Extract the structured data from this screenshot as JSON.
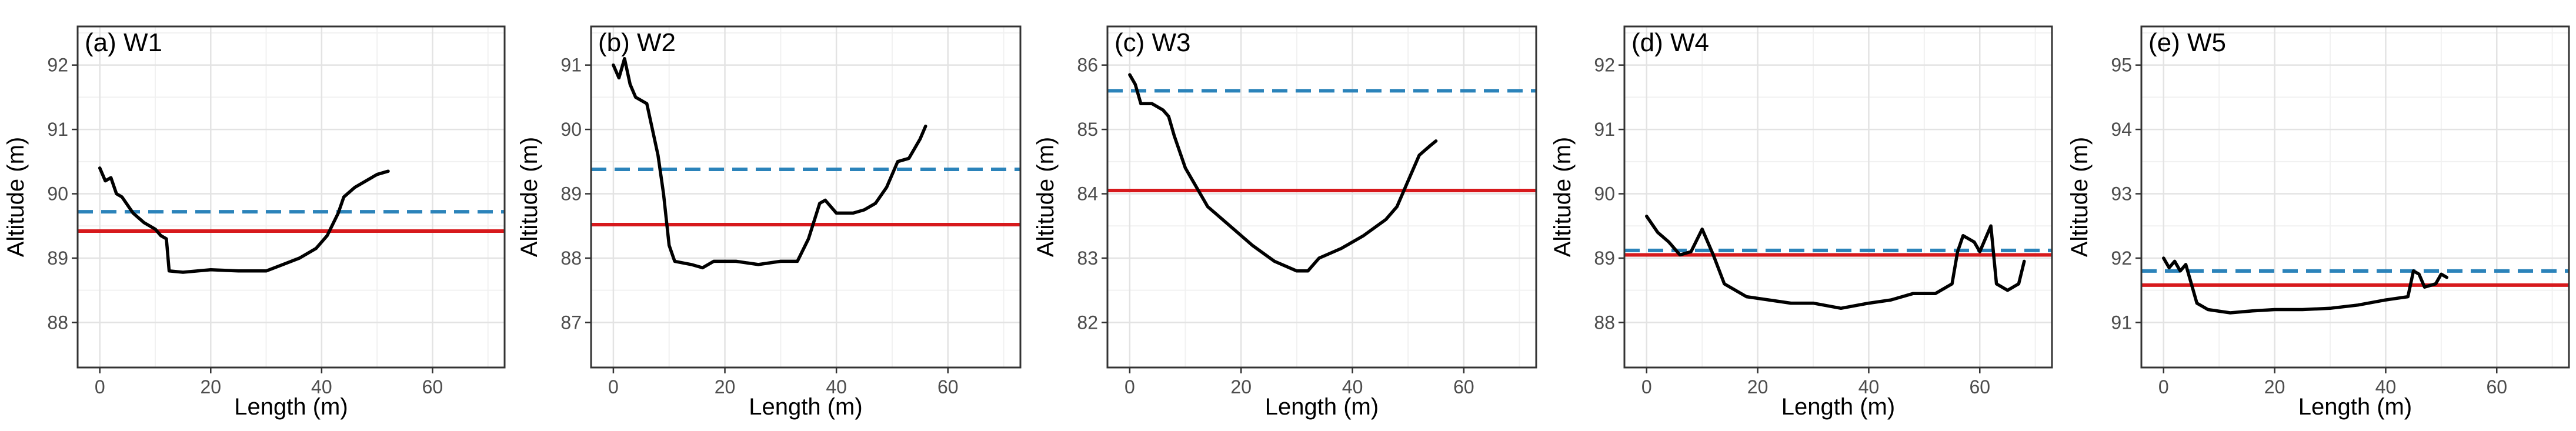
{
  "chart_data": [
    {
      "type": "line",
      "panel_label": "(a) W1",
      "xlabel": "Length (m)",
      "ylabel": "Altitude (m)",
      "xlim": [
        -4,
        73
      ],
      "ylim": [
        87.3,
        92.6
      ],
      "xticks": [
        0,
        20,
        40,
        60
      ],
      "yticks": [
        88,
        89,
        90,
        91,
        92
      ],
      "grid": true,
      "hlines": [
        {
          "y": 89.72,
          "style": "dashed",
          "color": "#2b83ba"
        },
        {
          "y": 89.42,
          "style": "solid",
          "color": "#d7191c"
        }
      ],
      "series": [
        {
          "color": "#000000",
          "points": [
            [
              0,
              90.4
            ],
            [
              1,
              90.2
            ],
            [
              2,
              90.25
            ],
            [
              3,
              90.0
            ],
            [
              4,
              89.95
            ],
            [
              6,
              89.7
            ],
            [
              8,
              89.55
            ],
            [
              10,
              89.45
            ],
            [
              11,
              89.35
            ],
            [
              12,
              89.3
            ],
            [
              12.5,
              88.8
            ],
            [
              15,
              88.78
            ],
            [
              20,
              88.82
            ],
            [
              25,
              88.8
            ],
            [
              30,
              88.8
            ],
            [
              33,
              88.9
            ],
            [
              36,
              89.0
            ],
            [
              39,
              89.15
            ],
            [
              41,
              89.35
            ],
            [
              43,
              89.7
            ],
            [
              44,
              89.95
            ],
            [
              46,
              90.1
            ],
            [
              48,
              90.2
            ],
            [
              50,
              90.3
            ],
            [
              52,
              90.35
            ]
          ]
        }
      ]
    },
    {
      "type": "line",
      "panel_label": "(b) W2",
      "xlabel": "Length (m)",
      "ylabel": "Altitude (m)",
      "xlim": [
        -4,
        73
      ],
      "ylim": [
        86.3,
        91.6
      ],
      "xticks": [
        0,
        20,
        40,
        60
      ],
      "yticks": [
        87,
        88,
        89,
        90,
        91
      ],
      "grid": true,
      "hlines": [
        {
          "y": 89.38,
          "style": "dashed",
          "color": "#2b83ba"
        },
        {
          "y": 88.52,
          "style": "solid",
          "color": "#d7191c"
        }
      ],
      "series": [
        {
          "color": "#000000",
          "points": [
            [
              0,
              91.0
            ],
            [
              1,
              90.8
            ],
            [
              2,
              91.1
            ],
            [
              3,
              90.7
            ],
            [
              4,
              90.5
            ],
            [
              6,
              90.4
            ],
            [
              7,
              90.0
            ],
            [
              8,
              89.6
            ],
            [
              9,
              89.0
            ],
            [
              10,
              88.2
            ],
            [
              11,
              87.95
            ],
            [
              14,
              87.9
            ],
            [
              16,
              87.85
            ],
            [
              18,
              87.95
            ],
            [
              22,
              87.95
            ],
            [
              26,
              87.9
            ],
            [
              30,
              87.95
            ],
            [
              33,
              87.95
            ],
            [
              35,
              88.3
            ],
            [
              37,
              88.85
            ],
            [
              38,
              88.9
            ],
            [
              40,
              88.7
            ],
            [
              43,
              88.7
            ],
            [
              45,
              88.75
            ],
            [
              47,
              88.85
            ],
            [
              49,
              89.1
            ],
            [
              51,
              89.5
            ],
            [
              53,
              89.55
            ],
            [
              55,
              89.85
            ],
            [
              56,
              90.05
            ]
          ]
        }
      ]
    },
    {
      "type": "line",
      "panel_label": "(c) W3",
      "xlabel": "Length (m)",
      "ylabel": "Altitude (m)",
      "xlim": [
        -4,
        73
      ],
      "ylim": [
        81.3,
        86.6
      ],
      "xticks": [
        0,
        20,
        40,
        60
      ],
      "yticks": [
        82,
        83,
        84,
        85,
        86
      ],
      "grid": true,
      "hlines": [
        {
          "y": 85.6,
          "style": "dashed",
          "color": "#2b83ba"
        },
        {
          "y": 84.05,
          "style": "solid",
          "color": "#d7191c"
        }
      ],
      "series": [
        {
          "color": "#000000",
          "points": [
            [
              0,
              85.85
            ],
            [
              1,
              85.7
            ],
            [
              2,
              85.4
            ],
            [
              4,
              85.4
            ],
            [
              6,
              85.3
            ],
            [
              7,
              85.2
            ],
            [
              8,
              84.9
            ],
            [
              10,
              84.4
            ],
            [
              12,
              84.1
            ],
            [
              14,
              83.8
            ],
            [
              16,
              83.65
            ],
            [
              18,
              83.5
            ],
            [
              22,
              83.2
            ],
            [
              26,
              82.95
            ],
            [
              30,
              82.8
            ],
            [
              32,
              82.8
            ],
            [
              34,
              83.0
            ],
            [
              38,
              83.15
            ],
            [
              42,
              83.35
            ],
            [
              46,
              83.6
            ],
            [
              48,
              83.8
            ],
            [
              50,
              84.2
            ],
            [
              52,
              84.6
            ],
            [
              54,
              84.75
            ],
            [
              55,
              84.82
            ]
          ]
        }
      ]
    },
    {
      "type": "line",
      "panel_label": "(d) W4",
      "xlabel": "Length (m)",
      "ylabel": "Altitude (m)",
      "xlim": [
        -4,
        73
      ],
      "ylim": [
        87.3,
        92.6
      ],
      "xticks": [
        0,
        20,
        40,
        60
      ],
      "yticks": [
        88,
        89,
        90,
        91,
        92
      ],
      "grid": true,
      "hlines": [
        {
          "y": 89.12,
          "style": "dashed",
          "color": "#2b83ba"
        },
        {
          "y": 89.05,
          "style": "solid",
          "color": "#d7191c"
        }
      ],
      "series": [
        {
          "color": "#000000",
          "points": [
            [
              0,
              89.65
            ],
            [
              2,
              89.4
            ],
            [
              4,
              89.25
            ],
            [
              6,
              89.05
            ],
            [
              8,
              89.1
            ],
            [
              10,
              89.45
            ],
            [
              12,
              89.05
            ],
            [
              14,
              88.6
            ],
            [
              18,
              88.4
            ],
            [
              22,
              88.35
            ],
            [
              26,
              88.3
            ],
            [
              30,
              88.3
            ],
            [
              35,
              88.22
            ],
            [
              40,
              88.3
            ],
            [
              44,
              88.35
            ],
            [
              48,
              88.45
            ],
            [
              52,
              88.45
            ],
            [
              55,
              88.6
            ],
            [
              56,
              89.1
            ],
            [
              57,
              89.35
            ],
            [
              59,
              89.25
            ],
            [
              60,
              89.1
            ],
            [
              62,
              89.5
            ],
            [
              63,
              88.6
            ],
            [
              65,
              88.5
            ],
            [
              67,
              88.6
            ],
            [
              68,
              88.95
            ]
          ]
        }
      ]
    },
    {
      "type": "line",
      "panel_label": "(e) W5",
      "xlabel": "Length (m)",
      "ylabel": "Altitude (m)",
      "xlim": [
        -4,
        73
      ],
      "ylim": [
        90.3,
        95.6
      ],
      "xticks": [
        0,
        20,
        40,
        60
      ],
      "yticks": [
        91,
        92,
        93,
        94,
        95
      ],
      "grid": true,
      "hlines": [
        {
          "y": 91.8,
          "style": "dashed",
          "color": "#2b83ba"
        },
        {
          "y": 91.58,
          "style": "solid",
          "color": "#d7191c"
        }
      ],
      "series": [
        {
          "color": "#000000",
          "points": [
            [
              0,
              92.0
            ],
            [
              1,
              91.85
            ],
            [
              2,
              91.95
            ],
            [
              3,
              91.8
            ],
            [
              4,
              91.9
            ],
            [
              5,
              91.6
            ],
            [
              6,
              91.3
            ],
            [
              8,
              91.2
            ],
            [
              12,
              91.15
            ],
            [
              16,
              91.18
            ],
            [
              20,
              91.2
            ],
            [
              25,
              91.2
            ],
            [
              30,
              91.22
            ],
            [
              35,
              91.27
            ],
            [
              40,
              91.35
            ],
            [
              44,
              91.4
            ],
            [
              45,
              91.8
            ],
            [
              46,
              91.75
            ],
            [
              47,
              91.55
            ],
            [
              49,
              91.6
            ],
            [
              50,
              91.75
            ],
            [
              51,
              91.7
            ]
          ]
        }
      ]
    }
  ]
}
